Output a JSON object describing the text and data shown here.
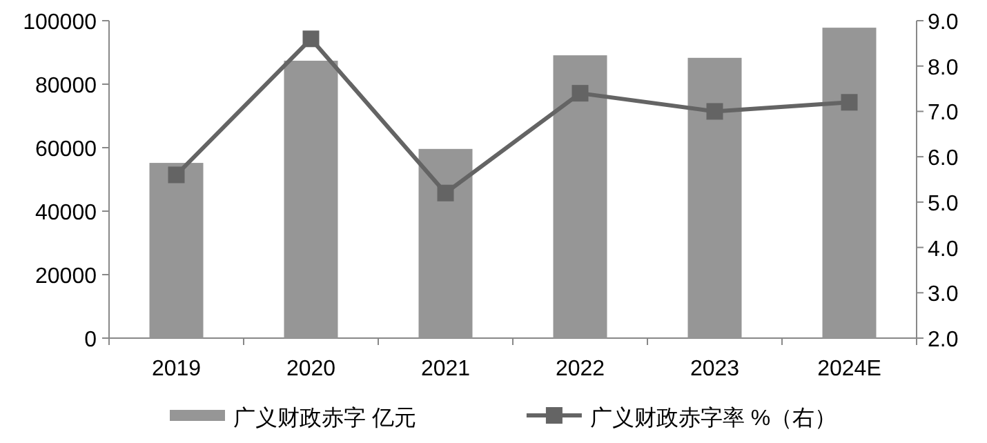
{
  "chart_data": {
    "type": "bar",
    "categories": [
      "2019",
      "2020",
      "2021",
      "2022",
      "2023",
      "2024E"
    ],
    "series": [
      {
        "name": "广义财政赤字 亿元",
        "color": "#969696",
        "values": [
          55200,
          87400,
          59600,
          89100,
          88300,
          97800
        ]
      },
      {
        "name": "广义财政赤字率 %（右）",
        "type": "line",
        "axis": "y2",
        "color": "#646464",
        "marker": "square",
        "values": [
          5.6,
          8.6,
          5.2,
          7.4,
          7.0,
          7.2
        ]
      }
    ],
    "ylim": [
      0,
      100000
    ],
    "yticks": [
      0,
      20000,
      40000,
      60000,
      80000,
      100000
    ],
    "y2lim": [
      2,
      9
    ],
    "y2ticks": [
      {
        "value": 2,
        "label": "2.0"
      },
      {
        "value": 3,
        "label": "3.0"
      },
      {
        "value": 4,
        "label": "4.0"
      },
      {
        "value": 5,
        "label": "5.0"
      },
      {
        "value": 6,
        "label": "6.0"
      },
      {
        "value": 7,
        "label": "7.0"
      },
      {
        "value": 8,
        "label": "8.0"
      },
      {
        "value": 9,
        "label": "9.0"
      }
    ],
    "grid": false,
    "legend": "bottom"
  }
}
